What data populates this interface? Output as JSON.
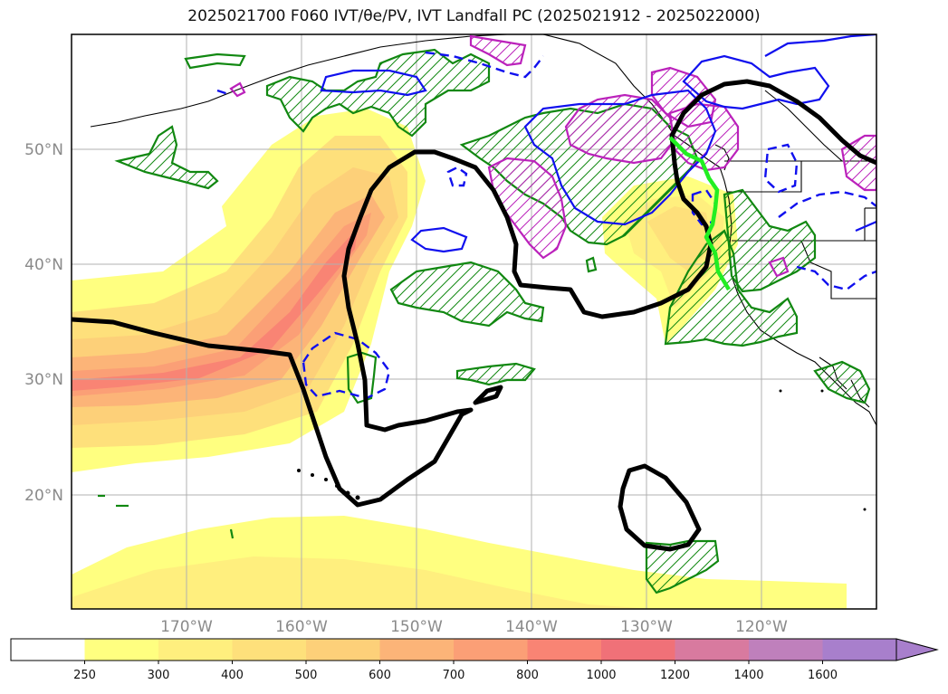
{
  "title": "2025021700 F060 IVT/θe/PV, IVT Landfall PC (2025021912 - 2025022000)",
  "map": {
    "lon_range": [
      -180,
      -110
    ],
    "lat_range": [
      10,
      60
    ],
    "lat_labels": [
      "20°N",
      "30°N",
      "40°N",
      "50°N"
    ],
    "lon_labels": [
      "170°W",
      "160°W",
      "150°W",
      "140°W",
      "130°W",
      "120°W"
    ],
    "gridlines": true
  },
  "colorbar": {
    "levels": [
      "250",
      "300",
      "400",
      "500",
      "600",
      "700",
      "800",
      "1000",
      "1200",
      "1400",
      "1600"
    ],
    "colors": [
      "#ffffff",
      "#ffff80",
      "#ffef7e",
      "#fee07b",
      "#fdd079",
      "#fcb478",
      "#fb9f76",
      "#f98474",
      "#f07178",
      "#d87a9f",
      "#bf80bc",
      "#a87fcc"
    ],
    "extend": "max"
  },
  "legend_colors": {
    "ivt_fill": "#fdd079",
    "theta_e_contour": "#000000",
    "pv_green": "#118811",
    "pv_magenta": "#bb22bb",
    "blue_solid": "#1010ee",
    "blue_dashed": "#1010ee",
    "landfall_line": "#22ee22"
  }
}
